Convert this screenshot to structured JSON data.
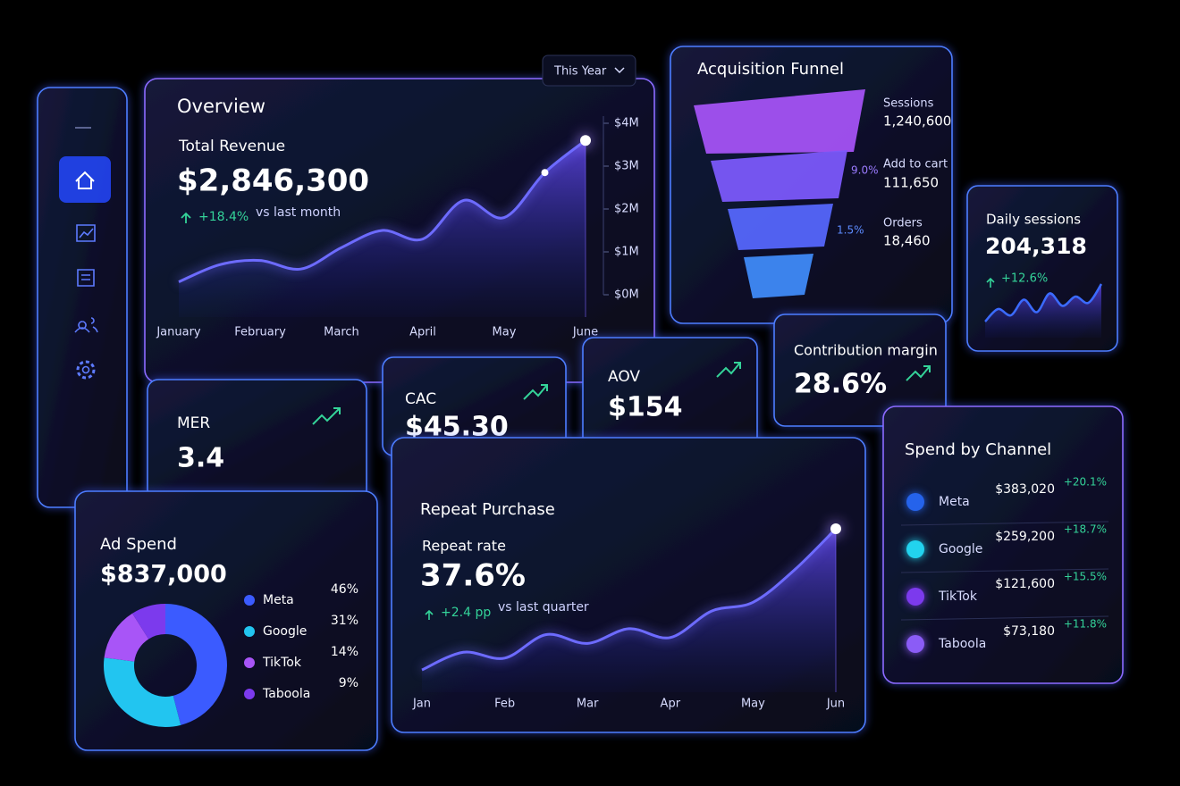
{
  "sidebar": {},
  "overview": {
    "title": "Overview",
    "period": "This Year",
    "metric_label": "Total Revenue",
    "metric_value": "$2,846,300",
    "change": "+18.4%",
    "change_note": "vs last month",
    "chart_data": {
      "type": "line",
      "categories": [
        "January",
        null,
        "February",
        null,
        "March",
        null,
        "April",
        null,
        "May",
        null,
        "June"
      ],
      "values": [
        300000,
        700000,
        800000,
        600000,
        1100000,
        1500000,
        1300000,
        2200000,
        1800000,
        2850000,
        3600000
      ],
      "ylim": [
        0,
        4000000
      ],
      "yticks": [
        {
          "value": 0,
          "label": "$0M"
        },
        {
          "value": 1000000,
          "label": "$1M"
        },
        {
          "value": 2000000,
          "label": "$2M"
        },
        {
          "value": 3000000,
          "label": "$3M"
        },
        {
          "value": 4000000,
          "label": "$4M"
        }
      ],
      "color": "#6d6bff"
    }
  },
  "funnel": {
    "title": "Acquisition Funnel",
    "stages": [
      {
        "label": "Sessions",
        "value": "1,240,600"
      },
      {
        "label": "Add to cart",
        "value": "111,650"
      },
      {
        "label": "Orders",
        "value": "18,460"
      }
    ],
    "rates": [
      "9.0%",
      "1.5%"
    ]
  },
  "daily_sessions": {
    "title": "Daily sessions",
    "value": "204,318",
    "change": "+12.6%",
    "chart_data": {
      "type": "area",
      "values": [
        20,
        28,
        24,
        34,
        26,
        38,
        30,
        36,
        32,
        44
      ],
      "color": "#3b6bff"
    }
  },
  "kpis": [
    {
      "label": "MER",
      "value": "3.4"
    },
    {
      "label": "CAC",
      "value": "$45.30"
    },
    {
      "label": "AOV",
      "value": "$154"
    },
    {
      "label": "Contribution margin",
      "value": "28.6%"
    }
  ],
  "ad_spend": {
    "title": "Ad Spend",
    "value": "$837,000",
    "chart_data": {
      "type": "pie",
      "categories": [
        "Meta",
        "Google",
        "TikTok",
        "Taboola"
      ],
      "values": [
        46,
        31,
        14,
        9
      ],
      "value_labels": [
        "46%",
        "31%",
        "14%",
        "9%"
      ],
      "colors": [
        "#3b5bff",
        "#22c5f0",
        "#a855f7",
        "#7c3aed"
      ]
    }
  },
  "repeat": {
    "title": "Repeat Purchase",
    "metric_label": "Repeat rate",
    "metric_value": "37.6%",
    "change": "+2.4 pp",
    "change_note": "vs last quarter",
    "chart_data": {
      "type": "line",
      "categories": [
        "Jan",
        null,
        "Feb",
        null,
        "Mar",
        null,
        "Apr",
        null,
        "May",
        null,
        "Jun"
      ],
      "values": [
        10,
        16,
        14,
        22,
        19,
        24,
        21,
        30,
        33,
        44,
        58
      ],
      "color": "#6d6bff"
    }
  },
  "channels": {
    "title": "Spend by Channel",
    "rows": [
      {
        "name": "Meta",
        "spend": "$383,020",
        "change": "+20.1%",
        "color": "#2563eb"
      },
      {
        "name": "Google",
        "spend": "$259,200",
        "change": "+18.7%",
        "color": "#22d3ee"
      },
      {
        "name": "TikTok",
        "spend": "$121,600",
        "change": "+15.5%",
        "color": "#7c3aed"
      },
      {
        "name": "Taboola",
        "spend": "$73,180",
        "change": "+11.8%",
        "color": "#8b5cf6"
      }
    ]
  }
}
